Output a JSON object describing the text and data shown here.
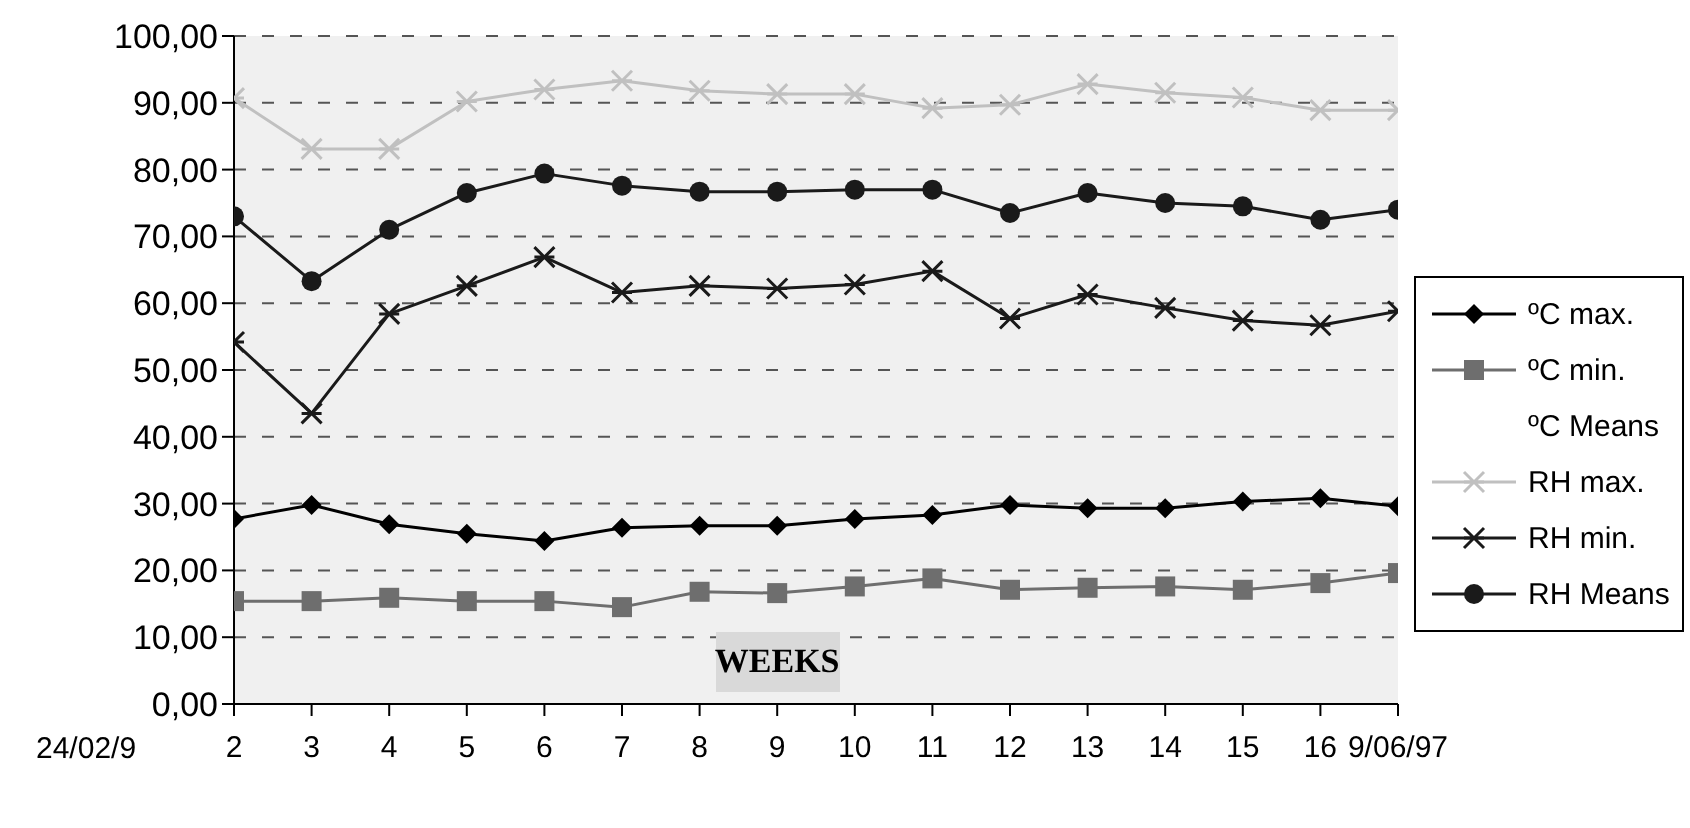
{
  "chart_data": {
    "type": "line",
    "xlabel": "WEEKS",
    "categories": [
      "2",
      "3",
      "4",
      "5",
      "6",
      "7",
      "8",
      "9",
      "10",
      "11",
      "12",
      "13",
      "14",
      "15",
      "16",
      "9/06/97"
    ],
    "series": [
      {
        "name": "ºC max.",
        "color": "#000000",
        "marker": "diamond",
        "values": [
          27.7,
          29.8,
          26.9,
          25.5,
          24.4,
          26.4,
          26.7,
          26.7,
          27.7,
          28.3,
          29.8,
          29.3,
          29.3,
          30.3,
          30.8,
          29.6
        ]
      },
      {
        "name": "ºC min.",
        "color": "#6e6e6e",
        "marker": "square",
        "values": [
          15.4,
          15.4,
          15.9,
          15.4,
          15.4,
          14.5,
          16.8,
          16.6,
          17.6,
          18.8,
          17.1,
          17.4,
          17.6,
          17.1,
          18.1,
          19.6
        ]
      },
      {
        "name": "ºC Means",
        "values": [
          null,
          null,
          null,
          null,
          null,
          null,
          null,
          null,
          null,
          null,
          null,
          null,
          null,
          null,
          null,
          null
        ]
      },
      {
        "name": "RH max.",
        "color": "#c0c0c0",
        "marker": "cross",
        "values": [
          90.7,
          83.1,
          83.1,
          90.2,
          92.0,
          93.3,
          91.8,
          91.3,
          91.3,
          89.2,
          89.7,
          92.8,
          91.5,
          90.8,
          88.9,
          88.9
        ]
      },
      {
        "name": "RH min.",
        "color": "#1a1a1a",
        "marker": "cross",
        "values": [
          54.2,
          43.5,
          58.4,
          62.6,
          66.9,
          61.6,
          62.6,
          62.2,
          62.8,
          64.8,
          57.7,
          61.3,
          59.3,
          57.4,
          56.7,
          58.8
        ]
      },
      {
        "name": "RH Means",
        "color": "#1a1a1a",
        "marker": "circle",
        "values": [
          73.0,
          63.3,
          71.0,
          76.5,
          79.4,
          77.6,
          76.7,
          76.7,
          77.0,
          77.0,
          73.5,
          76.5,
          75.0,
          74.5,
          72.5,
          74.0
        ]
      }
    ],
    "ylim": [
      0,
      100
    ],
    "yticks": [
      {
        "value": 0,
        "label": "0,00"
      },
      {
        "value": 10,
        "label": "10,00"
      },
      {
        "value": 20,
        "label": "20,00"
      },
      {
        "value": 30,
        "label": "30,00"
      },
      {
        "value": 40,
        "label": "40,00"
      },
      {
        "value": 50,
        "label": "50,00"
      },
      {
        "value": 60,
        "label": "60,00"
      },
      {
        "value": 70,
        "label": "70,00"
      },
      {
        "value": 80,
        "label": "80,00"
      },
      {
        "value": 90,
        "label": "90,00"
      },
      {
        "value": 100,
        "label": "100,00"
      }
    ],
    "grid": "y",
    "legend": "right",
    "annotations": [
      "24/02/9"
    ]
  }
}
